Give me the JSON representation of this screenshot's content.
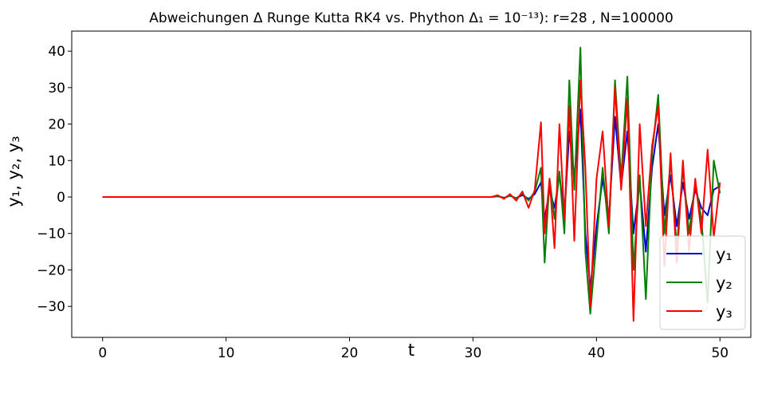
{
  "chart_data": {
    "type": "line",
    "title": "Abweichungen Δ Runge Kutta RK4 vs. Phython Δ₁ = 10⁻¹³): r=28 , N=100000",
    "xlabel": "t",
    "ylabel": "y₁, y₂, y₃",
    "xlim": [
      -2.5,
      52.5
    ],
    "ylim": [
      -38.5,
      45.5
    ],
    "x_ticks": [
      0,
      10,
      20,
      30,
      40,
      50
    ],
    "x_tick_labels": [
      "0",
      "10",
      "20",
      "30",
      "40",
      "50"
    ],
    "y_ticks": [
      40,
      30,
      20,
      10,
      0,
      -10,
      -20,
      -30
    ],
    "y_tick_labels": [
      "40",
      "30",
      "20",
      "10",
      "0",
      "−10",
      "−20",
      "−30"
    ],
    "grid": false,
    "legend_position": "lower-right",
    "series": [
      {
        "name": "y₁",
        "color": "#0000cc",
        "x": [
          0,
          31.5,
          32.0,
          32.5,
          33.0,
          33.5,
          34.0,
          34.5,
          35.0,
          35.5,
          35.8,
          36.2,
          36.6,
          37.0,
          37.4,
          37.8,
          38.2,
          38.7,
          39.1,
          39.5,
          40.0,
          40.5,
          41.0,
          41.5,
          42.0,
          42.5,
          43.0,
          43.5,
          44.0,
          44.5,
          45.0,
          45.5,
          46.0,
          46.5,
          47.0,
          47.5,
          48.0,
          48.5,
          49.0,
          49.5,
          50.0
        ],
        "y": [
          0,
          0,
          0.2,
          -0.2,
          0.3,
          -0.3,
          0.5,
          -0.5,
          0.8,
          4.0,
          -6.0,
          2.0,
          -3.0,
          6.0,
          -5.0,
          18.0,
          5.0,
          24.0,
          -10.0,
          -25.0,
          -8.0,
          5.0,
          -6.0,
          22.0,
          3.0,
          18.0,
          -10.0,
          4.0,
          -15.0,
          8.0,
          20.0,
          -5.0,
          6.0,
          -8.0,
          4.0,
          -6.0,
          2.0,
          -3.0,
          -5.0,
          2.0,
          3.0
        ]
      },
      {
        "name": "y₂",
        "color": "#008000",
        "x": [
          0,
          31.5,
          32.0,
          32.5,
          33.0,
          33.5,
          34.0,
          34.5,
          35.0,
          35.5,
          35.8,
          36.2,
          36.6,
          37.0,
          37.4,
          37.8,
          38.2,
          38.7,
          39.1,
          39.5,
          40.0,
          40.5,
          41.0,
          41.5,
          42.0,
          42.5,
          43.0,
          43.5,
          44.0,
          44.5,
          45.0,
          45.5,
          46.0,
          46.5,
          47.0,
          47.5,
          48.0,
          48.5,
          49.0,
          49.5,
          50.0
        ],
        "y": [
          0,
          0,
          0.3,
          -0.3,
          0.4,
          -0.4,
          1.0,
          -1.0,
          1.5,
          8.0,
          -18.0,
          5.0,
          -6.0,
          7.0,
          -10.0,
          32.0,
          2.0,
          41.0,
          -15.0,
          -32.0,
          -12.0,
          8.0,
          -10.0,
          32.0,
          5.0,
          33.0,
          -20.0,
          6.0,
          -28.0,
          12.0,
          28.0,
          -10.0,
          10.0,
          -14.0,
          8.0,
          -10.0,
          4.0,
          -6.0,
          -29.0,
          10.0,
          1.0
        ]
      },
      {
        "name": "y₃",
        "color": "#ff0000",
        "x": [
          0,
          31.5,
          32.0,
          32.5,
          33.0,
          33.5,
          34.0,
          34.5,
          35.0,
          35.5,
          35.8,
          36.2,
          36.6,
          37.0,
          37.4,
          37.8,
          38.2,
          38.7,
          39.1,
          39.5,
          40.0,
          40.5,
          41.0,
          41.5,
          42.0,
          42.5,
          43.0,
          43.5,
          44.0,
          44.5,
          45.0,
          45.5,
          46.0,
          46.5,
          47.0,
          47.5,
          48.0,
          48.5,
          49.0,
          49.5,
          50.0
        ],
        "y": [
          0,
          0,
          0.5,
          -0.5,
          0.8,
          -1.0,
          1.5,
          -3.0,
          2.0,
          20.5,
          -10.0,
          5.0,
          -14.0,
          20.0,
          -6.0,
          25.0,
          -12.0,
          32.0,
          8.0,
          -30.0,
          5.0,
          18.0,
          -8.0,
          30.0,
          2.0,
          27.0,
          -34.0,
          20.0,
          -8.0,
          14.0,
          25.0,
          -19.0,
          12.0,
          -18.0,
          10.0,
          -15.0,
          5.0,
          -10.0,
          13.0,
          -11.0,
          4.0
        ]
      }
    ]
  }
}
